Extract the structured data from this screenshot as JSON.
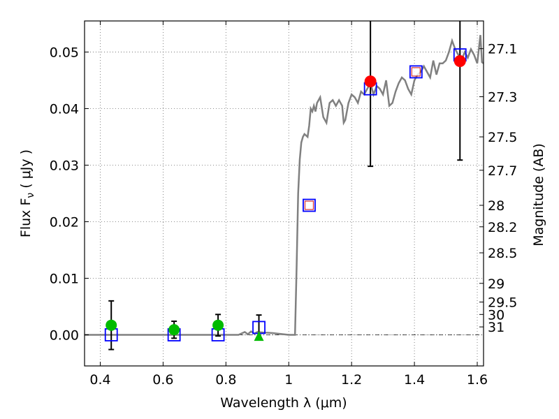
{
  "chart_data": {
    "type": "scatter",
    "xlabel": "Wavelength  λ (μm)",
    "ylabel": "Flux  F",
    "ylabel_sub": "ν",
    "ylabel_unit": "  ( μJy )",
    "y2label": "Magnitude (AB)",
    "xlim": [
      0.35,
      1.62
    ],
    "ylim": [
      -0.0055,
      0.0555
    ],
    "x_ticks": [
      0.4,
      0.6,
      0.8,
      1.0,
      1.2,
      1.4,
      1.6
    ],
    "x_tick_labels": [
      "0.4",
      "0.6",
      "0.8",
      "1",
      "1.2",
      "1.4",
      "1.6"
    ],
    "y_ticks": [
      0.0,
      0.01,
      0.02,
      0.03,
      0.04,
      0.05
    ],
    "y_tick_labels": [
      "0.00",
      "0.01",
      "0.02",
      "0.03",
      "0.04",
      "0.05"
    ],
    "y2_ticks": [
      {
        "label": "27.1",
        "flux": 0.0506
      },
      {
        "label": "27.3",
        "flux": 0.0421
      },
      {
        "label": "27.5",
        "flux": 0.035
      },
      {
        "label": "27.7",
        "flux": 0.0291
      },
      {
        "label": "28",
        "flux": 0.0229
      },
      {
        "label": "28.2",
        "flux": 0.0191
      },
      {
        "label": "28.5",
        "flux": 0.0145
      },
      {
        "label": "29",
        "flux": 0.0091
      },
      {
        "label": "29.5",
        "flux": 0.0058
      },
      {
        "label": "30",
        "flux": 0.0036
      },
      {
        "label": "31",
        "flux": 0.0014
      }
    ],
    "grid": true,
    "colors": {
      "model": "#808080",
      "observed": "#00bb00",
      "observed_ir": "#ff0000",
      "model_photometry": "#0000ff",
      "inner_square": "#cc0000",
      "errorbar": "#000000"
    },
    "series": [
      {
        "kind": "model-spectrum",
        "x": [
          0.35,
          0.4,
          0.45,
          0.5,
          0.55,
          0.6,
          0.65,
          0.7,
          0.75,
          0.8,
          0.84,
          0.86,
          0.87,
          0.88,
          0.89,
          0.9,
          0.92,
          0.95,
          1.0,
          1.02,
          1.025,
          1.03,
          1.035,
          1.04,
          1.045,
          1.05,
          1.06,
          1.065,
          1.07,
          1.075,
          1.08,
          1.085,
          1.09,
          1.1,
          1.11,
          1.12,
          1.13,
          1.14,
          1.15,
          1.16,
          1.17,
          1.175,
          1.18,
          1.19,
          1.2,
          1.21,
          1.22,
          1.23,
          1.24,
          1.25,
          1.26,
          1.27,
          1.28,
          1.29,
          1.3,
          1.31,
          1.32,
          1.33,
          1.34,
          1.35,
          1.36,
          1.37,
          1.38,
          1.39,
          1.4,
          1.41,
          1.42,
          1.43,
          1.44,
          1.45,
          1.46,
          1.47,
          1.48,
          1.49,
          1.5,
          1.51,
          1.52,
          1.53,
          1.54,
          1.55,
          1.56,
          1.57,
          1.58,
          1.59,
          1.6,
          1.61,
          1.615,
          1.62
        ],
        "y": [
          0.0,
          0.0,
          0.0,
          0.0,
          0.0,
          0.0,
          0.0,
          0.0,
          0.0,
          0.0,
          0.0,
          0.0005,
          0.0001,
          0.0006,
          0.0002,
          0.0005,
          0.0004,
          0.0003,
          0.0,
          0.0,
          0.012,
          0.025,
          0.031,
          0.034,
          0.035,
          0.0355,
          0.035,
          0.037,
          0.04,
          0.0395,
          0.0405,
          0.0395,
          0.041,
          0.042,
          0.0385,
          0.0375,
          0.041,
          0.0415,
          0.0405,
          0.0415,
          0.0405,
          0.0375,
          0.038,
          0.041,
          0.0425,
          0.042,
          0.041,
          0.043,
          0.0425,
          0.0435,
          0.0445,
          0.0425,
          0.044,
          0.0435,
          0.0425,
          0.045,
          0.0405,
          0.041,
          0.043,
          0.0445,
          0.0455,
          0.045,
          0.0435,
          0.0425,
          0.045,
          0.046,
          0.0465,
          0.0475,
          0.0465,
          0.0455,
          0.0485,
          0.046,
          0.048,
          0.048,
          0.0485,
          0.05,
          0.052,
          0.0505,
          0.0495,
          0.0485,
          0.05,
          0.049,
          0.0505,
          0.0495,
          0.048,
          0.053,
          0.0482,
          0.048
        ]
      },
      {
        "kind": "observed-optical",
        "points": [
          {
            "x": 0.435,
            "y": 0.0017,
            "err": 0.0043
          },
          {
            "x": 0.635,
            "y": 0.0009,
            "err": 0.0015
          },
          {
            "x": 0.775,
            "y": 0.0017,
            "err": 0.0019
          }
        ]
      },
      {
        "kind": "observed-upper-limit",
        "points": [
          {
            "x": 0.905,
            "y": -0.0002
          }
        ]
      },
      {
        "kind": "observed-ir",
        "points": [
          {
            "x": 1.26,
            "y": 0.0448,
            "err": 0.015
          },
          {
            "x": 1.545,
            "y": 0.0484,
            "err": 0.0175
          }
        ]
      },
      {
        "kind": "model-photometry",
        "points": [
          {
            "x": 0.435,
            "y": 0.0
          },
          {
            "x": 0.635,
            "y": 0.0
          },
          {
            "x": 0.775,
            "y": 0.0
          },
          {
            "x": 0.905,
            "y": 0.0013,
            "err": 0.0022
          },
          {
            "x": 1.065,
            "y": 0.0229
          },
          {
            "x": 1.26,
            "y": 0.0435
          },
          {
            "x": 1.405,
            "y": 0.0465
          },
          {
            "x": 1.545,
            "y": 0.0495
          }
        ]
      },
      {
        "kind": "inner-squares",
        "points": [
          {
            "x": 1.065,
            "y": 0.0229
          },
          {
            "x": 1.405,
            "y": 0.0465
          }
        ]
      }
    ]
  }
}
